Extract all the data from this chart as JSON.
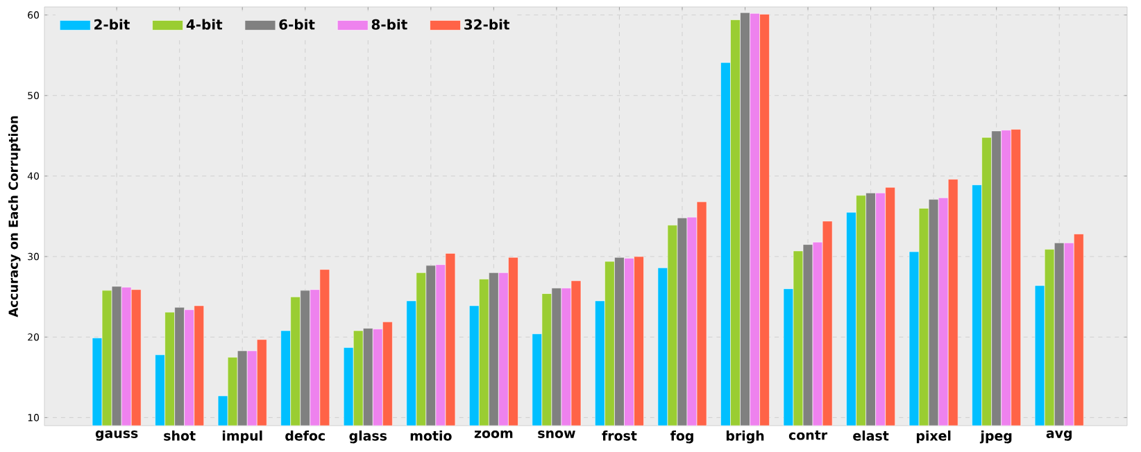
{
  "chart_data": {
    "type": "bar",
    "ylabel": "Accuracy on Each Corruption",
    "categories": [
      "gauss",
      "shot",
      "impul",
      "defoc",
      "glass",
      "motio",
      "zoom",
      "snow",
      "frost",
      "fog",
      "brigh",
      "contr",
      "elast",
      "pixel",
      "jpeg",
      "avg"
    ],
    "series": [
      {
        "name": "2-bit",
        "color": "#00bfff",
        "values": [
          19.9,
          17.8,
          12.7,
          20.8,
          18.7,
          24.5,
          23.9,
          20.4,
          24.5,
          28.6,
          54.1,
          26.0,
          35.5,
          30.6,
          38.9,
          26.4
        ]
      },
      {
        "name": "4-bit",
        "color": "#9acd32",
        "values": [
          25.8,
          23.1,
          17.5,
          25.0,
          20.8,
          28.0,
          27.2,
          25.4,
          29.4,
          33.9,
          59.4,
          30.7,
          37.6,
          36.0,
          44.8,
          30.9
        ]
      },
      {
        "name": "6-bit",
        "color": "#808080",
        "values": [
          26.3,
          23.7,
          18.3,
          25.8,
          21.1,
          28.9,
          28.0,
          26.1,
          29.9,
          34.8,
          60.3,
          31.5,
          37.9,
          37.1,
          45.6,
          31.7
        ]
      },
      {
        "name": "8-bit",
        "color": "#ee82ee",
        "values": [
          26.2,
          23.4,
          18.3,
          25.9,
          21.0,
          29.0,
          28.0,
          26.1,
          29.8,
          34.9,
          60.2,
          31.8,
          37.9,
          37.3,
          45.7,
          31.7
        ]
      },
      {
        "name": "32-bit",
        "color": "#ff6347",
        "values": [
          25.9,
          23.9,
          19.7,
          28.4,
          21.9,
          30.4,
          29.9,
          27.0,
          30.0,
          36.8,
          60.1,
          34.4,
          38.6,
          39.6,
          45.8,
          32.8
        ]
      }
    ],
    "ylim": [
      9,
      61
    ],
    "yticks": [
      10,
      20,
      30,
      40,
      50,
      60
    ],
    "grid": true,
    "legend": "top left"
  }
}
